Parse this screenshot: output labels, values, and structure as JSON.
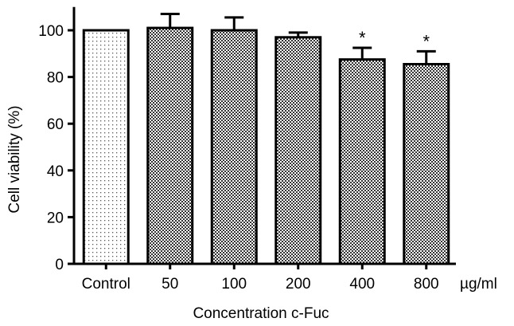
{
  "chart_data": {
    "type": "bar",
    "categories": [
      "Control",
      "50",
      "100",
      "200",
      "400",
      "800"
    ],
    "values": [
      100,
      101,
      100,
      97,
      87.5,
      85.5
    ],
    "errors": [
      0,
      6,
      5.5,
      2,
      5,
      5.5
    ],
    "significance": [
      "",
      "",
      "",
      "",
      "*",
      "*"
    ],
    "patterns": [
      "dots",
      "checker",
      "checker",
      "checker",
      "checker",
      "checker"
    ],
    "title": "",
    "xlabel": "Concentration c-Fuc",
    "ylabel": "Cell viability (%)",
    "x_unit": "µg/ml",
    "ylim": [
      0,
      110
    ],
    "yticks": [
      0,
      20,
      40,
      60,
      80,
      100
    ],
    "grid": false,
    "legend": "none"
  }
}
